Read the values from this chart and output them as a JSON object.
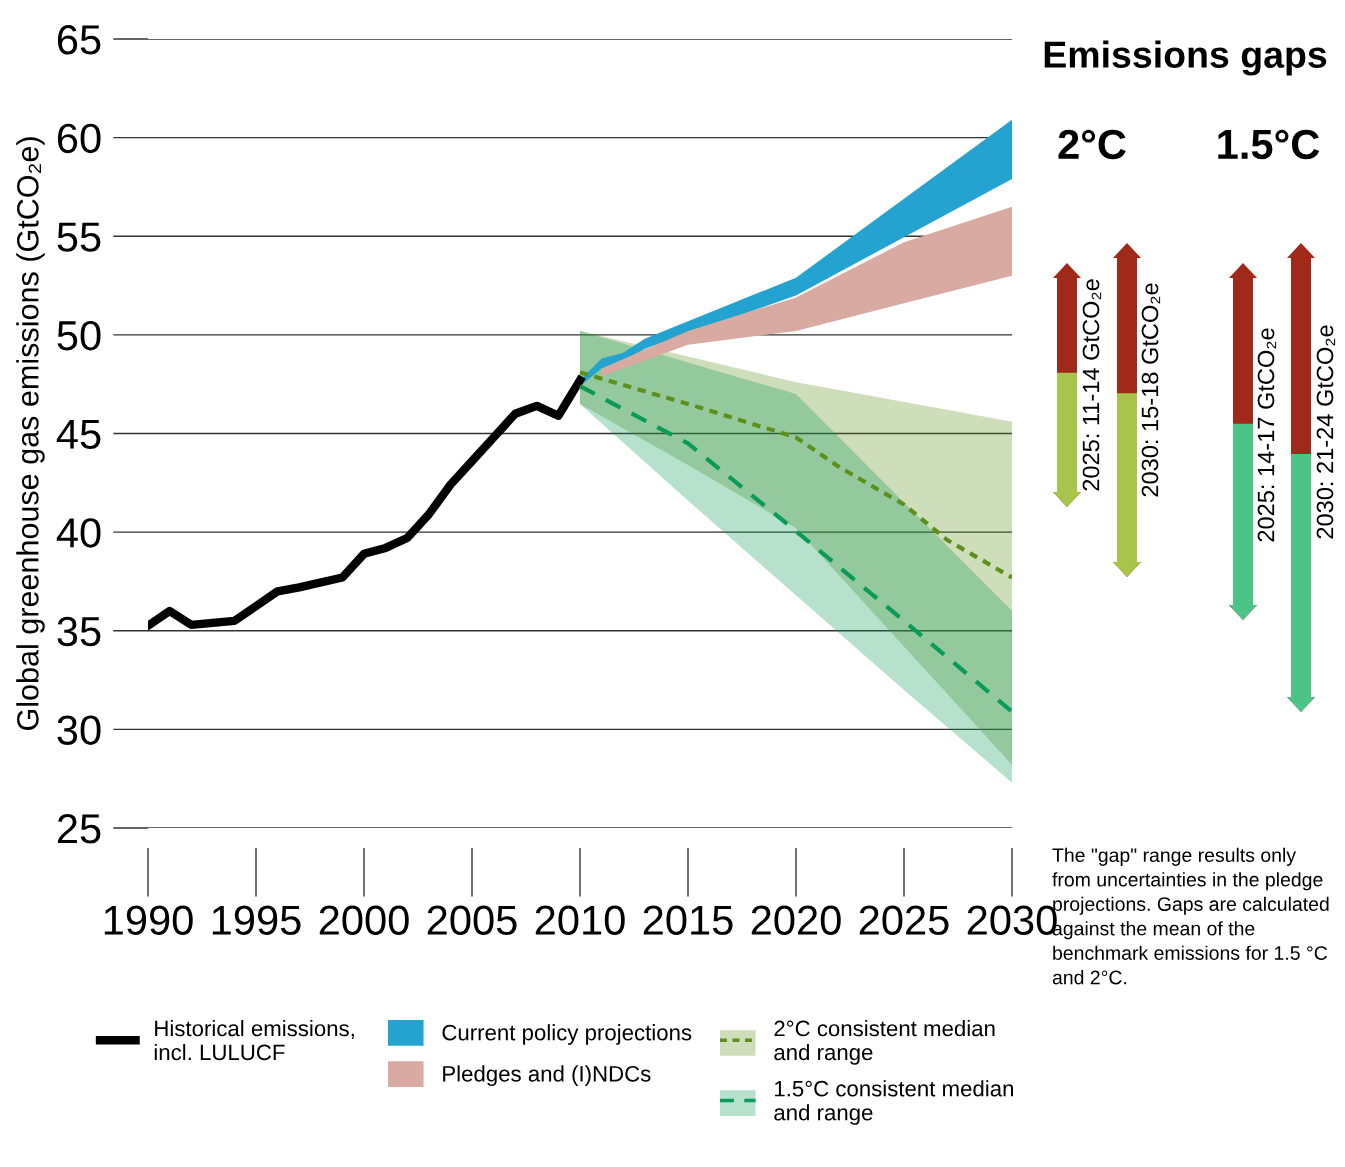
{
  "chart_data": {
    "type": "line",
    "ylabel": "Global greenhouse gas emissions (GtCO₂e)",
    "xlim": [
      1990,
      2030
    ],
    "ylim": [
      25,
      65
    ],
    "xticks": [
      1990,
      1995,
      2000,
      2005,
      2010,
      2015,
      2020,
      2025,
      2030
    ],
    "yticks": [
      25,
      30,
      35,
      40,
      45,
      50,
      55,
      60,
      65
    ],
    "grid": "y",
    "legend": "bottom",
    "series": [
      {
        "name": "Historical emissions,\nincl. LULUCF",
        "color": "#000000",
        "line_style": "solid",
        "x": [
          1990,
          1991,
          1992,
          1994,
          1995,
          1996,
          1997,
          1999,
          2000,
          2001,
          2002,
          2003,
          2004,
          2005,
          2006,
          2007,
          2008,
          2009,
          2010
        ],
        "values": [
          35.25,
          36.0,
          35.3,
          35.5,
          36.25,
          37.0,
          37.2,
          37.7,
          38.9,
          39.2,
          39.7,
          40.9,
          42.4,
          43.6,
          44.8,
          46.0,
          46.4,
          45.9,
          47.7
        ]
      },
      {
        "name": "Current policy projections",
        "type": "area",
        "color": "#24a3d0",
        "x": [
          2010,
          2011,
          2012,
          2013,
          2020,
          2030
        ],
        "values": [
          null,
          null,
          null,
          null,
          null,
          null
        ],
        "lower": [
          47.4,
          48.3,
          48.7,
          49.3,
          52.0,
          57.9
        ],
        "upper": [
          47.7,
          48.8,
          49.1,
          49.8,
          52.9,
          60.9
        ]
      },
      {
        "name": "Pledges and (I)NDCs",
        "type": "area",
        "color": "#d9aaa2",
        "x": [
          2011,
          2015,
          2020,
          2025,
          2030
        ],
        "values": [
          null,
          null,
          null,
          null,
          null
        ],
        "lower": [
          47.9,
          49.5,
          50.2,
          51.6,
          53.0
        ],
        "upper": [
          48.3,
          50.2,
          51.9,
          54.7,
          56.5
        ]
      },
      {
        "name": "2°C consistent median\nand range",
        "type": "line",
        "line_style": "dotted",
        "color": "#5e8f1c",
        "x": [
          2010,
          2015,
          2020,
          2022,
          2025,
          2027,
          2030
        ],
        "values": [
          48.1,
          46.5,
          44.8,
          43.3,
          41.4,
          39.6,
          37.7
        ],
        "lower": [
          46.5,
          43.4,
          40.2,
          37.8,
          34.2,
          31.8,
          28.2
        ],
        "upper": [
          50.2,
          48.9,
          47.6,
          47.2,
          46.6,
          46.2,
          45.6
        ]
      },
      {
        "name": "1.5°C consistent median\nand range",
        "type": "line",
        "line_style": "dashed",
        "color": "#0a9a5a",
        "x": [
          2010,
          2015,
          2020,
          2025,
          2030
        ],
        "values": [
          47.4,
          44.5,
          40.05,
          35.5,
          30.9
        ],
        "lower": [
          46.5,
          41.6,
          36.8,
          32.0,
          27.3
        ],
        "upper": [
          50.2,
          48.6,
          47.0,
          41.5,
          36.0
        ]
      }
    ],
    "annotations": [
      "Emissions gaps",
      "2°C",
      "1.5°C",
      "2025: 11-14 GtCO₂e",
      "2030: 15-18 GtCO₂e",
      "2025: 14-17 GtCO₂e",
      "2030: 21-24 GtCO₂e",
      "The \"gap\" range results only\nfrom uncertainties in the pledge\nprojections. Gaps are calculated\nagainst the mean of the\nbenchmark emissions for 1.5 °C\nand 2°C."
    ]
  }
}
